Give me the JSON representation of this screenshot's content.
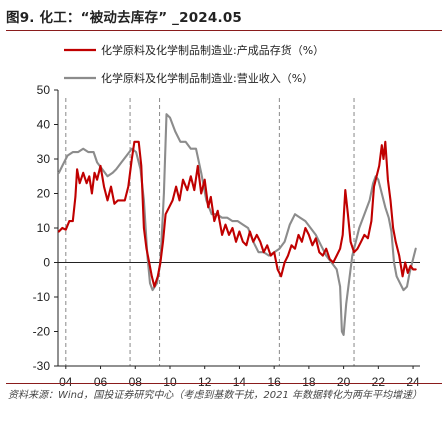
{
  "figure": {
    "title": "图9. 化工：“被动去库存” _2024.05",
    "source": "资料来源：Wind，国投证券研究中心（考虑到基数干扰，2021 年数据转化为两年平均增速）"
  },
  "colors": {
    "inventory": "#c00000",
    "revenue": "#8c8c8c",
    "rule": "#8a1c1c",
    "vline": "#888888"
  },
  "chart_data": {
    "type": "line",
    "title": "",
    "xlabel": "",
    "ylabel": "",
    "xlim": [
      2003.75,
      2024.6
    ],
    "ylim": [
      -30,
      50
    ],
    "yticks": [
      "50",
      "40",
      "30",
      "20",
      "10",
      "0",
      "-10",
      "-20",
      "-30"
    ],
    "xticks": [
      {
        "label": "04",
        "x": 2004.2
      },
      {
        "label": "06",
        "x": 2006.2
      },
      {
        "label": "08",
        "x": 2008.2
      },
      {
        "label": "10",
        "x": 2010.2
      },
      {
        "label": "12",
        "x": 2012.2
      },
      {
        "label": "14",
        "x": 2014.2
      },
      {
        "label": "16",
        "x": 2016.2
      },
      {
        "label": "18",
        "x": 2018.2
      },
      {
        "label": "20",
        "x": 2020.2
      },
      {
        "label": "22",
        "x": 2022.2
      },
      {
        "label": "24",
        "x": 2024.2
      }
    ],
    "reference_lines_x": [
      2004.2,
      2007.9,
      2009.6,
      2016.5,
      2020.8
    ],
    "legend_position": "top",
    "series": [
      {
        "name": "化学原料及化学制品制造业:产成品存货（%）",
        "color": "#c00000",
        "points": [
          [
            2003.8,
            9
          ],
          [
            2004.0,
            10
          ],
          [
            2004.2,
            9.5
          ],
          [
            2004.4,
            12
          ],
          [
            2004.6,
            12
          ],
          [
            2004.75,
            19
          ],
          [
            2004.85,
            27
          ],
          [
            2005.0,
            23
          ],
          [
            2005.2,
            26
          ],
          [
            2005.4,
            23
          ],
          [
            2005.55,
            25
          ],
          [
            2005.7,
            20
          ],
          [
            2005.85,
            26
          ],
          [
            2006.0,
            24
          ],
          [
            2006.2,
            28
          ],
          [
            2006.4,
            22
          ],
          [
            2006.6,
            18
          ],
          [
            2006.8,
            22
          ],
          [
            2007.0,
            17
          ],
          [
            2007.2,
            18
          ],
          [
            2007.4,
            18
          ],
          [
            2007.6,
            18
          ],
          [
            2007.8,
            22
          ],
          [
            2008.0,
            30
          ],
          [
            2008.15,
            35
          ],
          [
            2008.4,
            35
          ],
          [
            2008.55,
            28
          ],
          [
            2008.7,
            10
          ],
          [
            2008.85,
            4
          ],
          [
            2009.0,
            0
          ],
          [
            2009.15,
            -4
          ],
          [
            2009.3,
            -7
          ],
          [
            2009.5,
            -4
          ],
          [
            2009.65,
            0
          ],
          [
            2009.8,
            6
          ],
          [
            2009.95,
            14
          ],
          [
            2010.15,
            16
          ],
          [
            2010.35,
            18
          ],
          [
            2010.55,
            22
          ],
          [
            2010.75,
            18
          ],
          [
            2010.95,
            24
          ],
          [
            2011.2,
            21
          ],
          [
            2011.4,
            25
          ],
          [
            2011.6,
            21
          ],
          [
            2011.8,
            28
          ],
          [
            2012.0,
            20
          ],
          [
            2012.2,
            24
          ],
          [
            2012.4,
            16
          ],
          [
            2012.55,
            19
          ],
          [
            2012.75,
            12
          ],
          [
            2012.95,
            15
          ],
          [
            2013.2,
            8
          ],
          [
            2013.4,
            11
          ],
          [
            2013.6,
            8
          ],
          [
            2013.8,
            10
          ],
          [
            2014.0,
            6
          ],
          [
            2014.2,
            9
          ],
          [
            2014.4,
            6
          ],
          [
            2014.6,
            5
          ],
          [
            2014.8,
            9
          ],
          [
            2015.0,
            6
          ],
          [
            2015.2,
            8
          ],
          [
            2015.4,
            6
          ],
          [
            2015.6,
            3
          ],
          [
            2015.8,
            5
          ],
          [
            2016.0,
            2
          ],
          [
            2016.2,
            3
          ],
          [
            2016.4,
            -2
          ],
          [
            2016.6,
            -4
          ],
          [
            2016.8,
            0
          ],
          [
            2017.0,
            2
          ],
          [
            2017.2,
            5
          ],
          [
            2017.4,
            4
          ],
          [
            2017.6,
            8
          ],
          [
            2017.8,
            6
          ],
          [
            2018.0,
            10
          ],
          [
            2018.2,
            8
          ],
          [
            2018.4,
            5
          ],
          [
            2018.6,
            7
          ],
          [
            2018.8,
            3
          ],
          [
            2019.0,
            2
          ],
          [
            2019.2,
            4
          ],
          [
            2019.4,
            1
          ],
          [
            2019.6,
            0
          ],
          [
            2019.8,
            2
          ],
          [
            2020.0,
            4
          ],
          [
            2020.15,
            8
          ],
          [
            2020.3,
            21
          ],
          [
            2020.45,
            14
          ],
          [
            2020.6,
            6
          ],
          [
            2020.8,
            3
          ],
          [
            2021.0,
            4
          ],
          [
            2021.2,
            6
          ],
          [
            2021.4,
            8
          ],
          [
            2021.6,
            7
          ],
          [
            2021.8,
            12
          ],
          [
            2021.95,
            22
          ],
          [
            2022.1,
            25
          ],
          [
            2022.25,
            28
          ],
          [
            2022.4,
            34
          ],
          [
            2022.5,
            30
          ],
          [
            2022.6,
            35
          ],
          [
            2022.75,
            24
          ],
          [
            2022.9,
            18
          ],
          [
            2023.05,
            10
          ],
          [
            2023.2,
            6
          ],
          [
            2023.4,
            2
          ],
          [
            2023.6,
            -4
          ],
          [
            2023.75,
            0
          ],
          [
            2023.9,
            -3
          ],
          [
            2024.05,
            -1
          ],
          [
            2024.2,
            -2
          ],
          [
            2024.35,
            -2
          ]
        ]
      },
      {
        "name": "化学原料及化学制品制造业:营业收入（%）",
        "color": "#8c8c8c",
        "points": [
          [
            2003.8,
            26
          ],
          [
            2004.0,
            28
          ],
          [
            2004.3,
            31
          ],
          [
            2004.6,
            32
          ],
          [
            2004.9,
            32
          ],
          [
            2005.2,
            33
          ],
          [
            2005.5,
            32
          ],
          [
            2005.8,
            32
          ],
          [
            2006.0,
            29
          ],
          [
            2006.3,
            27
          ],
          [
            2006.6,
            25
          ],
          [
            2006.9,
            26
          ],
          [
            2007.1,
            27
          ],
          [
            2007.4,
            29
          ],
          [
            2007.7,
            31
          ],
          [
            2008.0,
            33
          ],
          [
            2008.25,
            32
          ],
          [
            2008.5,
            27
          ],
          [
            2008.7,
            18
          ],
          [
            2008.9,
            2
          ],
          [
            2009.05,
            -6
          ],
          [
            2009.2,
            -8
          ],
          [
            2009.45,
            -6
          ],
          [
            2009.65,
            0
          ],
          [
            2009.85,
            20
          ],
          [
            2010.0,
            43
          ],
          [
            2010.2,
            42
          ],
          [
            2010.5,
            38
          ],
          [
            2010.8,
            35
          ],
          [
            2011.1,
            35
          ],
          [
            2011.4,
            33
          ],
          [
            2011.7,
            33
          ],
          [
            2012.0,
            26
          ],
          [
            2012.3,
            18
          ],
          [
            2012.6,
            14
          ],
          [
            2012.9,
            14
          ],
          [
            2013.2,
            13
          ],
          [
            2013.5,
            13
          ],
          [
            2013.8,
            12
          ],
          [
            2014.1,
            12
          ],
          [
            2014.4,
            11
          ],
          [
            2014.7,
            10
          ],
          [
            2015.0,
            6
          ],
          [
            2015.3,
            3
          ],
          [
            2015.6,
            3
          ],
          [
            2015.9,
            2
          ],
          [
            2016.2,
            3
          ],
          [
            2016.5,
            4
          ],
          [
            2016.8,
            6
          ],
          [
            2017.1,
            11
          ],
          [
            2017.4,
            14
          ],
          [
            2017.7,
            13
          ],
          [
            2018.0,
            12
          ],
          [
            2018.3,
            10
          ],
          [
            2018.6,
            8
          ],
          [
            2018.9,
            5
          ],
          [
            2019.2,
            2
          ],
          [
            2019.5,
            0
          ],
          [
            2019.8,
            -2
          ],
          [
            2020.0,
            -7
          ],
          [
            2020.1,
            -20
          ],
          [
            2020.2,
            -21
          ],
          [
            2020.35,
            -12
          ],
          [
            2020.5,
            -6
          ],
          [
            2020.7,
            2
          ],
          [
            2020.9,
            6
          ],
          [
            2021.1,
            10
          ],
          [
            2021.4,
            14
          ],
          [
            2021.7,
            18
          ],
          [
            2021.9,
            23
          ],
          [
            2022.05,
            25
          ],
          [
            2022.2,
            24
          ],
          [
            2022.4,
            20
          ],
          [
            2022.6,
            16
          ],
          [
            2022.8,
            13
          ],
          [
            2022.95,
            9
          ],
          [
            2023.1,
            0
          ],
          [
            2023.25,
            -4
          ],
          [
            2023.45,
            -6
          ],
          [
            2023.65,
            -8
          ],
          [
            2023.85,
            -7
          ],
          [
            2024.0,
            -3
          ],
          [
            2024.15,
            0
          ],
          [
            2024.35,
            4
          ]
        ]
      }
    ]
  }
}
